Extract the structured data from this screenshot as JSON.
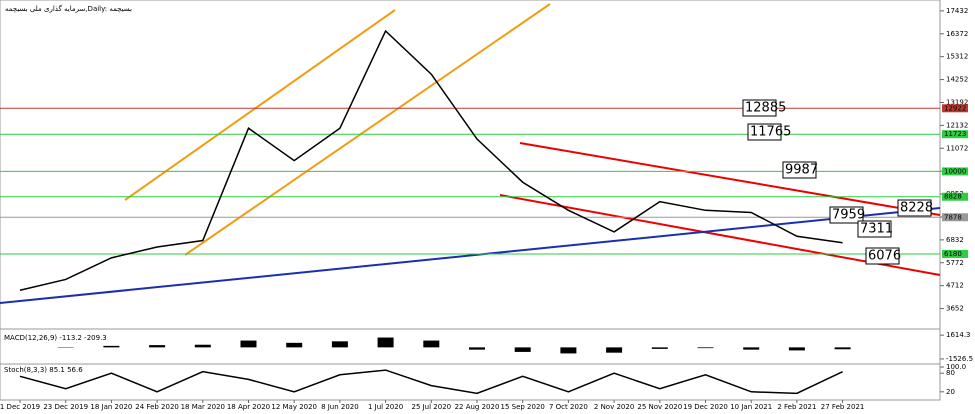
{
  "chart_data": [
    {
      "type": "line",
      "title": "سرمایه گذاری ملی بسیچمه,Daily: بسیچمه",
      "categories": [
        "1 Dec 2019",
        "23 Dec 2019",
        "18 Jan 2020",
        "24 Feb 2020",
        "18 Mar 2020",
        "18 Apr 2020",
        "12 May 2020",
        "8 Jun 2020",
        "1 Jul 2020",
        "25 Jul 2020",
        "22 Aug 2020",
        "15 Sep 2020",
        "7 Oct 2020",
        "2 Nov 2020",
        "25 Nov 2020",
        "19 Dec 2020",
        "10 Jan 2021",
        "2 Feb 2021",
        "27 Feb 2021"
      ],
      "series": [
        {
          "color": "#000000",
          "values": [
            4500,
            5000,
            6000,
            6500,
            6800,
            12000,
            10500,
            12000,
            16500,
            14500,
            11500,
            9500,
            8200,
            7200,
            8600,
            8200,
            8100,
            7000,
            6700
          ]
        }
      ],
      "ylim": [
        3400,
        17750
      ],
      "yticks": [
        17432,
        16372,
        15312,
        14252,
        13192,
        12132,
        11072,
        10012,
        8952,
        7892,
        6832,
        5772,
        4712,
        3652
      ],
      "levels": [
        {
          "value": 12922,
          "color": "#c0392b"
        },
        {
          "value": 11723,
          "color": "#2ecc40"
        },
        {
          "value": 10000,
          "color": "#2ecc40"
        },
        {
          "value": 8828,
          "color": "#2ecc40"
        },
        {
          "value": 7878,
          "color": "#999999"
        },
        {
          "value": 6180,
          "color": "#2ecc40"
        }
      ],
      "annotations": [
        "12885",
        "11765",
        "9987",
        "7959",
        "8228",
        "7311",
        "6076"
      ]
    },
    {
      "type": "bar",
      "title": "MACD(12,26,9) -113.2 -209.3",
      "color": "#000000",
      "values": [
        0,
        50,
        200,
        300,
        350,
        900,
        600,
        800,
        1300,
        900,
        -300,
        -600,
        -800,
        -700,
        -200,
        -100,
        -300,
        -400,
        -250
      ],
      "ylim": [
        -1800,
        1900
      ],
      "yticks": [
        1614.3,
        -1526.5
      ]
    },
    {
      "type": "line",
      "title": "Stoch(8,3,3) 85.1 56.6",
      "series": [
        {
          "color": "#000000",
          "values": [
            70,
            30,
            80,
            20,
            85,
            60,
            20,
            75,
            90,
            40,
            15,
            70,
            20,
            80,
            30,
            75,
            20,
            15,
            85
          ]
        }
      ],
      "ylim": [
        0,
        100
      ],
      "yticks": [
        {
          "value": 100,
          "label": "100.0"
        },
        80,
        20
      ]
    }
  ]
}
